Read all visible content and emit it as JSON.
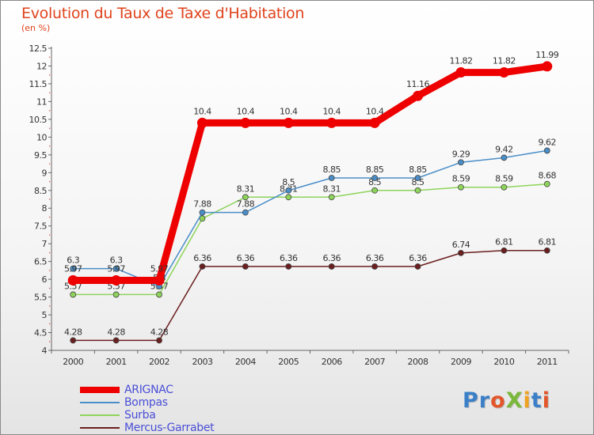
{
  "title": "Evolution du Taux de Taxe d'Habitation",
  "unit": "(en %)",
  "logo": {
    "text": "ProXiti",
    "colors": [
      "#3a7fc8",
      "#3a7fc8",
      "#e2562a",
      "#7ab83a",
      "#f0a321",
      "#3a7fc8",
      "#e2562a"
    ]
  },
  "chart_data": {
    "type": "line",
    "title": "Evolution du Taux de Taxe d'Habitation",
    "ylabel": "(en %)",
    "xlabel": "",
    "x": [
      "2000",
      "2001",
      "2002",
      "2003",
      "2004",
      "2005",
      "2006",
      "2007",
      "2008",
      "2009",
      "2010",
      "2011"
    ],
    "ylim": [
      4,
      12.5
    ],
    "yticks": [
      "4",
      "4.5",
      "5",
      "5.5",
      "6",
      "6.5",
      "7",
      "7.5",
      "8",
      "8.5",
      "9",
      "9.5",
      "10",
      "10.5",
      "11",
      "11.5",
      "12",
      "12.5"
    ],
    "grid": false,
    "legend_position": "bottom-left",
    "series": [
      {
        "name": "Mercus-Garrabet",
        "color": "#6b1e1e",
        "values": [
          4.28,
          4.28,
          4.28,
          6.36,
          6.36,
          6.36,
          6.36,
          6.36,
          6.36,
          6.74,
          6.81,
          6.81
        ],
        "labels": [
          "4.28",
          "4.28",
          "4.28",
          "6.36",
          "6.36",
          "6.36",
          "6.36",
          "6.36",
          "6.36",
          "6.74",
          "6.81",
          "6.81"
        ]
      },
      {
        "name": "Surba",
        "color": "#8ed45a",
        "values": [
          5.57,
          5.57,
          5.57,
          7.71,
          8.31,
          8.31,
          8.31,
          8.5,
          8.5,
          8.59,
          8.59,
          8.68
        ],
        "labels": [
          "5.57",
          "5.57",
          "5.57",
          "",
          "8.31",
          "8.31",
          "8.31",
          "8.5",
          "8.5",
          "8.59",
          "8.59",
          "8.68"
        ]
      },
      {
        "name": "Bompas",
        "color": "#4a8ec8",
        "values": [
          6.3,
          6.3,
          5.8,
          7.88,
          7.88,
          8.5,
          8.85,
          8.85,
          8.85,
          9.29,
          9.42,
          9.62
        ],
        "labels": [
          "6.3",
          "6.3",
          "5.8",
          "7.88",
          "7.88",
          "8.5",
          "8.85",
          "8.85",
          "8.85",
          "9.29",
          "9.42",
          "9.62"
        ]
      },
      {
        "name": "ARIGNAC",
        "color": "#ee0000",
        "values": [
          5.97,
          5.97,
          5.97,
          10.4,
          10.4,
          10.4,
          10.4,
          10.4,
          11.16,
          11.82,
          11.82,
          11.99
        ],
        "labels": [
          "5.97",
          "5.97",
          "5.97",
          "10.4",
          "10.4",
          "10.4",
          "10.4",
          "10.4",
          "11.16",
          "11.82",
          "11.82",
          "11.99"
        ]
      }
    ]
  }
}
